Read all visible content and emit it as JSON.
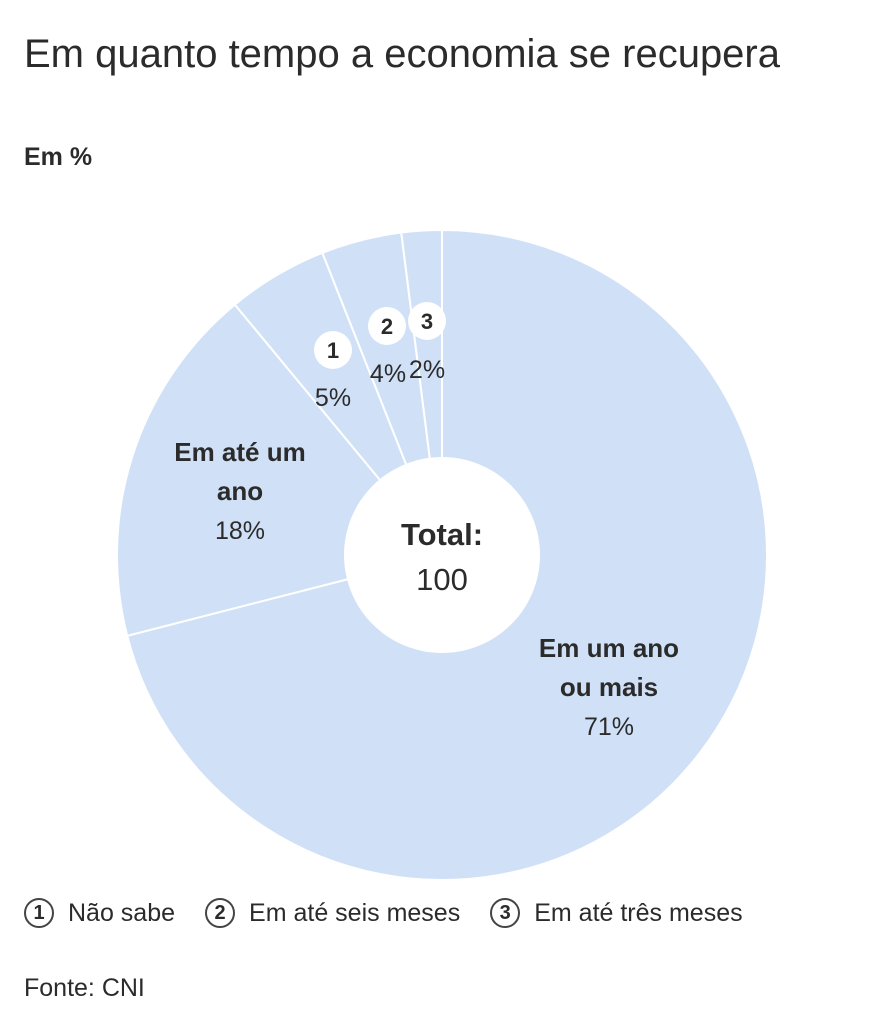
{
  "title": "Em quanto tempo a economia se recupera",
  "subtitle": "Em %",
  "chart_data": {
    "type": "pie",
    "donut": true,
    "center_label": "Total:",
    "center_value": "100",
    "slices": [
      {
        "key": "um-ano-ou-mais",
        "label": "Em um ano ou mais",
        "label_lines": [
          "Em um ano",
          "ou mais"
        ],
        "value": 71,
        "value_label": "71%"
      },
      {
        "key": "ate-um-ano",
        "label": "Em até um ano",
        "label_lines": [
          "Em até um",
          "ano"
        ],
        "value": 18,
        "value_label": "18%"
      },
      {
        "key": "nao-sabe",
        "label": "Não sabe",
        "badge": "1",
        "value": 5,
        "value_label": "5%"
      },
      {
        "key": "ate-seis-meses",
        "label": "Em até seis meses",
        "badge": "2",
        "value": 4,
        "value_label": "4%"
      },
      {
        "key": "ate-tres-meses",
        "label": "Em até três meses",
        "badge": "3",
        "value": 2,
        "value_label": "2%"
      }
    ],
    "slice_color": "#d0e1f7"
  },
  "legend": [
    {
      "badge": "1",
      "label": "Não sabe"
    },
    {
      "badge": "2",
      "label": "Em até seis meses"
    },
    {
      "badge": "3",
      "label": "Em até três meses"
    }
  ],
  "source": "Fonte: CNI"
}
